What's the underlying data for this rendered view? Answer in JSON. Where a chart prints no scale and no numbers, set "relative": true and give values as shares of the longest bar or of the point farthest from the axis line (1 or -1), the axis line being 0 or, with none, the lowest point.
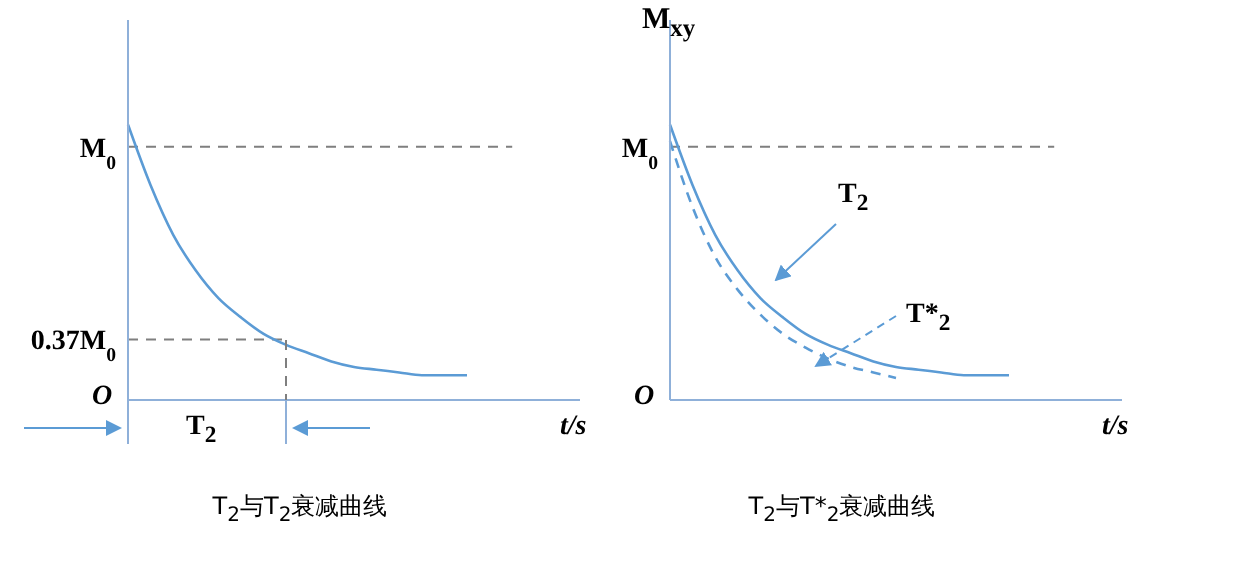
{
  "chart_data": [
    {
      "type": "line",
      "title": "T$_{2}$与T$_{2}$衰减曲线",
      "xlabel": "t/s",
      "relative": true,
      "marker": "none",
      "categories": [
        null,
        null,
        null,
        null,
        null,
        null,
        null,
        null,
        null,
        null,
        null,
        null,
        null,
        null,
        null,
        null,
        null,
        null,
        null,
        null,
        null
      ],
      "series": [
        {
          "color": "#5b9bd5",
          "line_style": "solid",
          "values": [
            1,
            0.78,
            0.6,
            0.47,
            0.37,
            0.3,
            0.24,
            0.2,
            0.17,
            0.14,
            0.12,
            0.11,
            0.1,
            0.09,
            0.09,
            0.09,
            null,
            null,
            null,
            null,
            null
          ]
        }
      ],
      "ref_lines": [
        {
          "axis": "y",
          "value": 0.92,
          "label": "M$_{0}$",
          "color": "#7f7f7f",
          "line_style": "dashed"
        },
        {
          "axis": "y",
          "value": 0.22,
          "label": "0.37M$_{0}$",
          "color": "#7f7f7f",
          "line_style": "dashed"
        }
      ],
      "annotations": [
        "O",
        "T$_{2}$"
      ]
    },
    {
      "type": "line",
      "title": "T$_{2}$与T*$_{2}$衰减曲线",
      "xlabel": "t/s",
      "ylabel": "M$_{xy}$",
      "relative": true,
      "marker": "none",
      "categories": [
        null,
        null,
        null,
        null,
        null,
        null,
        null,
        null,
        null,
        null,
        null,
        null,
        null,
        null,
        null,
        null,
        null,
        null,
        null,
        null,
        null
      ],
      "series": [
        {
          "color": "#5b9bd5",
          "line_style": "solid",
          "values": [
            1,
            0.78,
            0.6,
            0.47,
            0.37,
            0.3,
            0.24,
            0.2,
            0.17,
            0.14,
            0.12,
            0.11,
            0.1,
            0.09,
            0.09,
            0.09,
            null,
            null,
            null,
            null,
            null
          ]
        },
        {
          "color": "#5b9bd5",
          "line_style": "dashed",
          "values": [
            0.94,
            0.7,
            0.52,
            0.4,
            0.31,
            0.24,
            0.19,
            0.15,
            0.12,
            0.1,
            0.08,
            null,
            null,
            null,
            null,
            null,
            null,
            null,
            null,
            null,
            null
          ]
        }
      ],
      "ref_lines": [
        {
          "axis": "y",
          "value": 0.92,
          "label": "M$_{0}$",
          "color": "#7f7f7f",
          "line_style": "dashed"
        }
      ],
      "annotations": [
        "O",
        "T$_{2}$",
        "T*$_{2}$"
      ]
    }
  ]
}
